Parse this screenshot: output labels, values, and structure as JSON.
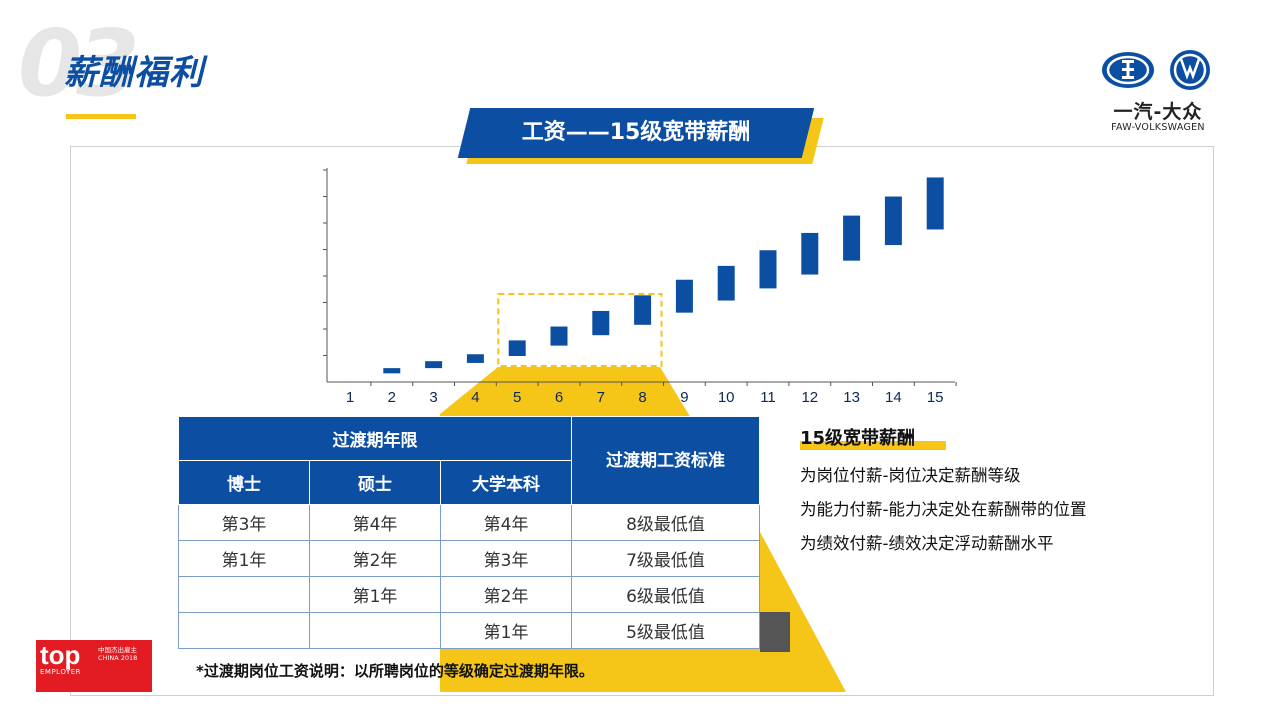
{
  "section": {
    "number": "03",
    "title": "薪酬福利"
  },
  "logo": {
    "cn": "一汽-大众",
    "en": "FAW-VOLKSWAGEN"
  },
  "banner": {
    "title": "工资——15级宽带薪酬"
  },
  "chart_data": {
    "type": "bar",
    "subtype": "floating-range",
    "categories": [
      "1",
      "2",
      "3",
      "4",
      "5",
      "6",
      "7",
      "8",
      "9",
      "10",
      "11",
      "12",
      "13",
      "14",
      "15"
    ],
    "ranges": [
      null,
      [
        0.5,
        0.8
      ],
      [
        0.8,
        1.2
      ],
      [
        1.1,
        1.6
      ],
      [
        1.5,
        2.4
      ],
      [
        2.1,
        3.2
      ],
      [
        2.7,
        4.1
      ],
      [
        3.3,
        5.0
      ],
      [
        4.0,
        5.9
      ],
      [
        4.7,
        6.7
      ],
      [
        5.4,
        7.6
      ],
      [
        6.2,
        8.6
      ],
      [
        7.0,
        9.6
      ],
      [
        7.9,
        10.7
      ],
      [
        8.8,
        11.8
      ]
    ],
    "highlight_categories": [
      "5",
      "6",
      "7",
      "8"
    ],
    "ylim": [
      0,
      12
    ],
    "colors": {
      "bar": "#0b4ea2",
      "highlight": "#f5c518"
    }
  },
  "table": {
    "group_header": "过渡期年限",
    "standard_header": "过渡期工资标准",
    "columns": [
      "博士",
      "硕士",
      "大学本科"
    ],
    "rows": [
      {
        "phd": "第3年",
        "master": "第4年",
        "bachelor": "第4年",
        "standard": "8级最低值"
      },
      {
        "phd": "第1年",
        "master": "第2年",
        "bachelor": "第3年",
        "standard": "7级最低值"
      },
      {
        "phd": "",
        "master": "第1年",
        "bachelor": "第2年",
        "standard": "6级最低值"
      },
      {
        "phd": "",
        "master": "",
        "bachelor": "第1年",
        "standard": "5级最低值"
      }
    ],
    "note": "*过渡期岗位工资说明：以所聘岗位的等级确定过渡期年限。"
  },
  "side": {
    "title": "15级宽带薪酬",
    "lines": [
      "为岗位付薪-岗位决定薪酬等级",
      "为能力付薪-能力决定处在薪酬带的位置",
      "为绩效付薪-绩效决定浮动薪酬水平"
    ]
  },
  "badge": {
    "top": "top",
    "employer": "EMPLOYER",
    "cn": "中国杰出雇主 CHINA 2018"
  }
}
